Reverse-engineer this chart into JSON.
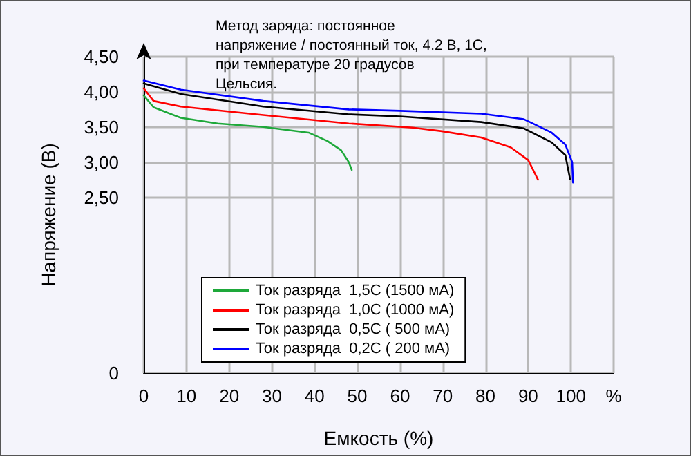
{
  "chart_data": {
    "type": "line",
    "title": "Метод заряда: постоянное напряжение / постоянный ток, 4.2 В, 1С, при температуре 20 градусов Цельсия.",
    "xlabel": "Емкость (%)",
    "ylabel": "Напряжение (В)",
    "xlim": [
      0,
      110
    ],
    "xticks": [
      0,
      10,
      20,
      30,
      40,
      50,
      60,
      70,
      80,
      90,
      100,
      {
        "value": 110,
        "label": "%"
      }
    ],
    "ylim": [
      0,
      4.5
    ],
    "yticks": [
      0,
      {
        "value": 2.5,
        "label": "2,50"
      },
      {
        "value": 3,
        "label": "3,00"
      },
      {
        "value": 3.5,
        "label": "3,50"
      },
      {
        "value": 4,
        "label": "4,00"
      },
      {
        "value": 4.5,
        "label": "4,50"
      }
    ],
    "grid": true,
    "legend": "bottom left",
    "marker": "none",
    "line_style": "solid",
    "series": [
      {
        "name": "Ток разряда  1,5С (1500 мА)",
        "color": "#1ea83a",
        "x": [
          0,
          2.3,
          8.7,
          17.3,
          28,
          38.6,
          43,
          46.2,
          48,
          48.7
        ],
        "values": [
          3.95,
          3.78,
          3.63,
          3.55,
          3.5,
          3.42,
          3.3,
          3.17,
          3.0,
          2.89
        ]
      },
      {
        "name": "Ток разряда  1,0С (1000 мА)",
        "color": "#ff0000",
        "x": [
          0,
          2.3,
          8.7,
          28,
          48,
          63,
          69.8,
          79,
          85.9,
          90,
          92.3
        ],
        "values": [
          4.05,
          3.87,
          3.79,
          3.67,
          3.55,
          3.49,
          3.44,
          3.35,
          3.21,
          3.03,
          2.75
        ]
      },
      {
        "name": "Ток разряда  0,5С ( 500 мА)",
        "color": "#000000",
        "x": [
          0,
          8.7,
          28,
          48,
          60,
          79,
          89,
          95.5,
          98.7,
          99.8
        ],
        "values": [
          4.12,
          3.97,
          3.79,
          3.68,
          3.65,
          3.57,
          3.48,
          3.28,
          3.1,
          2.76
        ]
      },
      {
        "name": "Ток разряда  0,2С ( 200 мА)",
        "color": "#0000ff",
        "x": [
          0,
          8.7,
          28,
          48,
          60,
          79,
          89,
          95.5,
          98.7,
          100.3,
          100.5
        ],
        "values": [
          4.16,
          4.03,
          3.87,
          3.75,
          3.73,
          3.69,
          3.61,
          3.42,
          3.25,
          3.0,
          2.71
        ]
      }
    ]
  }
}
